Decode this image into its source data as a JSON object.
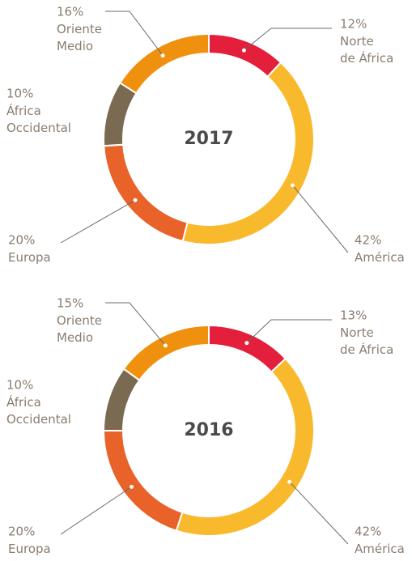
{
  "chart_data": [
    {
      "type": "pie",
      "title": "2017",
      "categories": [
        "Norte de África",
        "América",
        "Europa",
        "África Occidental",
        "Oriente Medio"
      ],
      "values": [
        12,
        42,
        20,
        10,
        16
      ],
      "value_labels": [
        "12%",
        "42%",
        "20%",
        "10%",
        "16%"
      ],
      "colors": [
        "#e31f3b",
        "#f9b92c",
        "#e8622a",
        "#7b6a52",
        "#f0900f"
      ]
    },
    {
      "type": "pie",
      "title": "2016",
      "categories": [
        "Norte de África",
        "América",
        "Europa",
        "África Occidental",
        "Oriente Medio"
      ],
      "values": [
        13,
        42,
        20,
        10,
        15
      ],
      "value_labels": [
        "13%",
        "42%",
        "20%",
        "10%",
        "15%"
      ],
      "colors": [
        "#e31f3b",
        "#f9b92c",
        "#e8622a",
        "#7b6a52",
        "#f0900f"
      ]
    }
  ]
}
